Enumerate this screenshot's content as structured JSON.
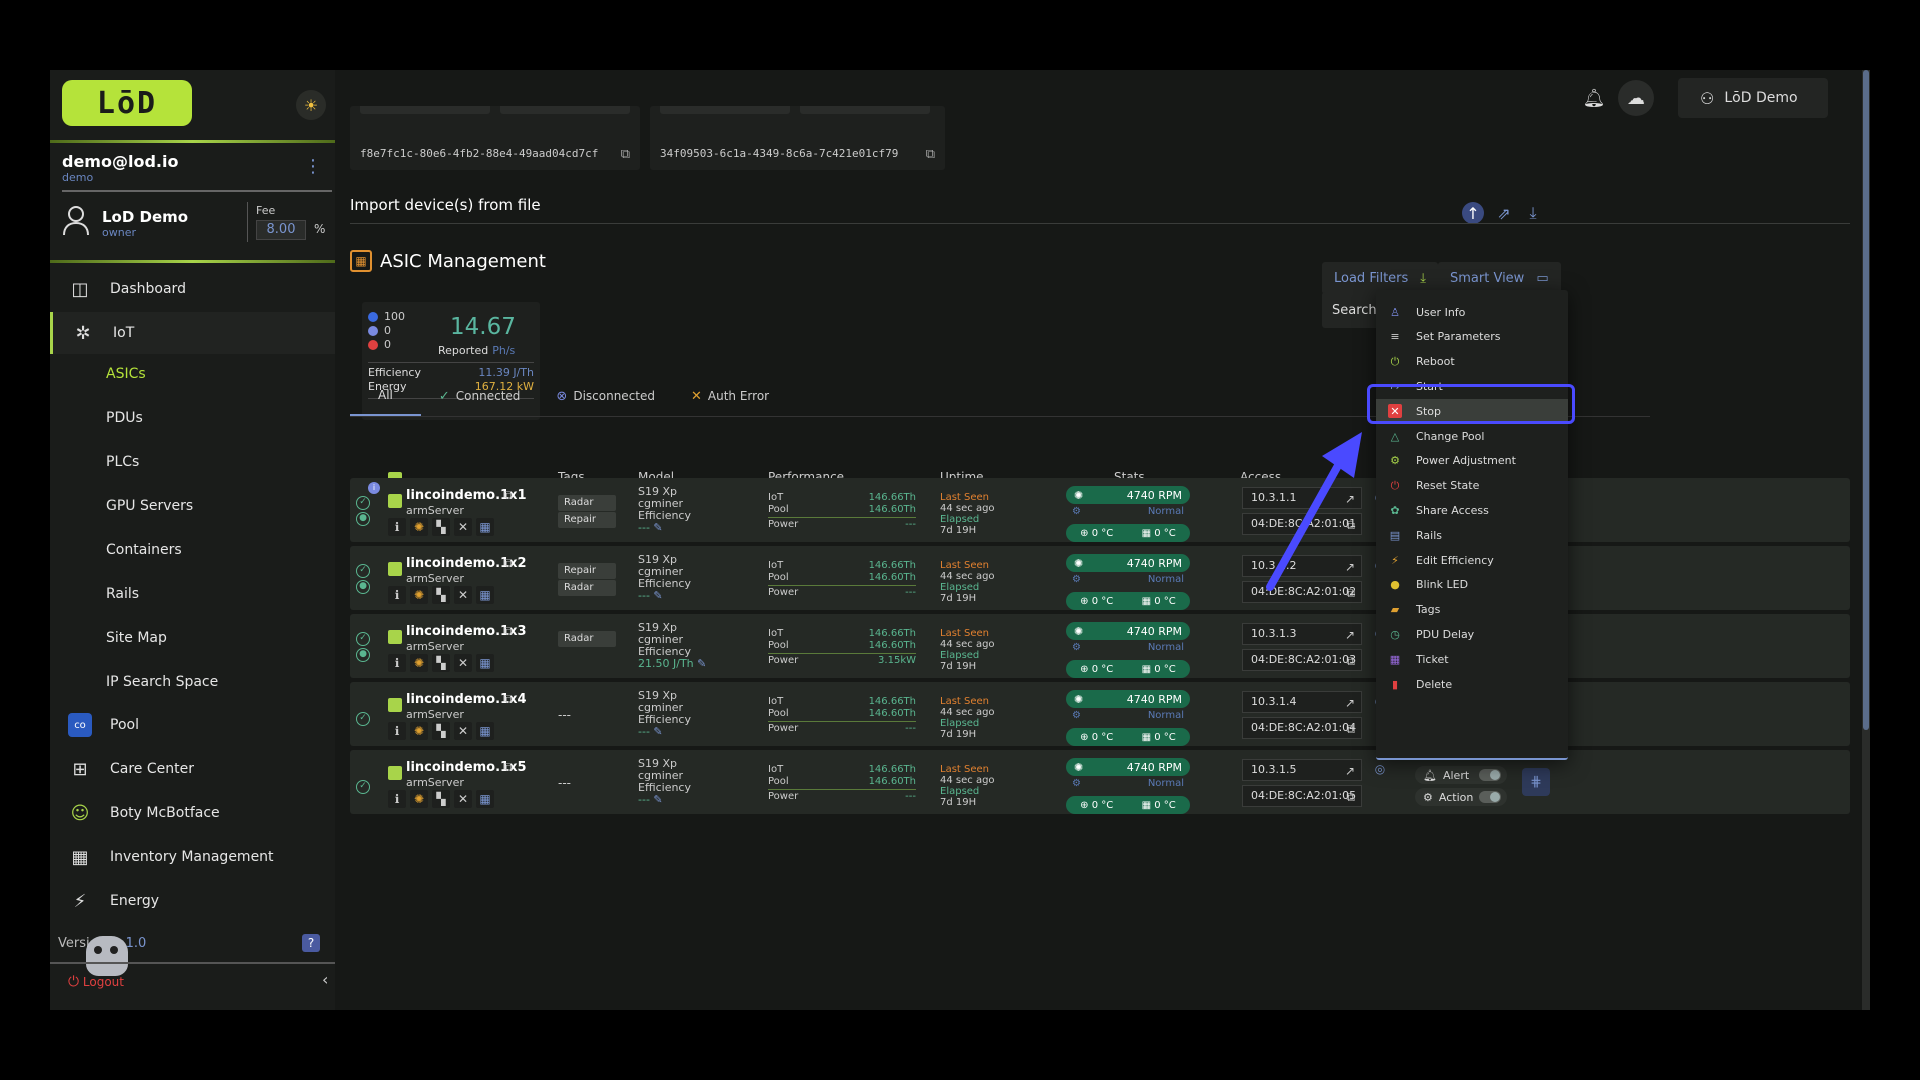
{
  "sidebar": {
    "logo": "LōD",
    "email": "demo@lod.io",
    "email_role": "demo",
    "owner_name": "LoD Demo",
    "owner_role": "owner",
    "fee_label": "Fee",
    "fee_value": "8.00",
    "fee_unit": "%",
    "nav": {
      "dashboard": "Dashboard",
      "iot": "IoT",
      "asics": "ASICs",
      "pdus": "PDUs",
      "plcs": "PLCs",
      "gpu": "GPU Servers",
      "containers": "Containers",
      "rails": "Rails",
      "sitemap": "Site Map",
      "ipsearch": "IP Search Space",
      "pool": "Pool",
      "care": "Care Center",
      "boty": "Boty McBotface",
      "inventory": "Inventory Management",
      "energy": "Energy"
    },
    "version_label": "Versi",
    "version_value": "1.0",
    "logout": "Logout"
  },
  "header": {
    "user": "LōD Demo"
  },
  "uuids": [
    "f8e7fc1c-80e6-4fb2-88e4-49aad04cd7cf",
    "34f09503-6c1a-4349-8c6a-7c421e01cf79"
  ],
  "import_title": "Import device(s) from file",
  "asic_title": "ASIC Management",
  "summary": {
    "connected": "100",
    "disconnected": "0",
    "error": "0",
    "hashrate": "14.67",
    "reported": "Reported",
    "unit": "Ph/s",
    "efficiency_label": "Efficiency",
    "efficiency_value": "11.39 J/Th",
    "energy_label": "Energy",
    "energy_value": "167.12 kW"
  },
  "load_filters": "Load Filters",
  "smart_view": "Smart View",
  "search_placeholder": "Search Device",
  "tabs": {
    "all": "All",
    "connected": "Connected",
    "disconnected": "Disconnected",
    "auth_error": "Auth Error"
  },
  "columns": {
    "tags": "Tags",
    "model": "Model",
    "performance": "Performance",
    "uptime": "Uptime",
    "stats": "Stats",
    "access": "Access"
  },
  "rows": [
    {
      "name": "lincoindemo.1x1",
      "type": "armServer",
      "tags": [
        "Radar",
        "Repair"
      ],
      "model": "S19 Xp",
      "miner": "cgminer",
      "eff": "---",
      "iot": "146.66Th",
      "pool": "146.60Th",
      "power": "---",
      "ls": "Last Seen",
      "ago": "44 sec ago",
      "elapsed": "Elapsed",
      "dur": "7d 19H",
      "rpm": "4740 RPM",
      "normal": "Normal",
      "t1": "0 °C",
      "t2": "0 °C",
      "ip": "10.3.1.1",
      "mac": "04:DE:8C:A2:01:01"
    },
    {
      "name": "lincoindemo.1x2",
      "type": "armServer",
      "tags": [
        "Repair",
        "Radar"
      ],
      "model": "S19 Xp",
      "miner": "cgminer",
      "eff": "---",
      "iot": "146.66Th",
      "pool": "146.60Th",
      "power": "---",
      "ls": "Last Seen",
      "ago": "44 sec ago",
      "elapsed": "Elapsed",
      "dur": "7d 19H",
      "rpm": "4740 RPM",
      "normal": "Normal",
      "t1": "0 °C",
      "t2": "0 °C",
      "ip": "10.3.1.2",
      "mac": "04:DE:8C:A2:01:02"
    },
    {
      "name": "lincoindemo.1x3",
      "type": "armServer",
      "tags": [
        "Radar"
      ],
      "model": "S19 Xp",
      "miner": "cgminer",
      "eff": "21.50 J/Th",
      "iot": "146.66Th",
      "pool": "146.60Th",
      "power": "3.15kW",
      "ls": "Last Seen",
      "ago": "44 sec ago",
      "elapsed": "Elapsed",
      "dur": "7d 19H",
      "rpm": "4740 RPM",
      "normal": "Normal",
      "t1": "0 °C",
      "t2": "0 °C",
      "ip": "10.3.1.3",
      "mac": "04:DE:8C:A2:01:03"
    },
    {
      "name": "lincoindemo.1x4",
      "type": "armServer",
      "tags": [],
      "tagnone": "---",
      "model": "S19 Xp",
      "miner": "cgminer",
      "eff": "---",
      "iot": "146.66Th",
      "pool": "146.60Th",
      "power": "---",
      "ls": "Last Seen",
      "ago": "44 sec ago",
      "elapsed": "Elapsed",
      "dur": "7d 19H",
      "rpm": "4740 RPM",
      "normal": "Normal",
      "t1": "0 °C",
      "t2": "0 °C",
      "ip": "10.3.1.4",
      "mac": "04:DE:8C:A2:01:04",
      "alert": "Alert",
      "action": "Action"
    },
    {
      "name": "lincoindemo.1x5",
      "type": "armServer",
      "tags": [],
      "tagnone": "---",
      "model": "S19 Xp",
      "miner": "cgminer",
      "eff": "---",
      "iot": "146.66Th",
      "pool": "146.60Th",
      "power": "---",
      "ls": "Last Seen",
      "ago": "44 sec ago",
      "elapsed": "Elapsed",
      "dur": "7d 19H",
      "rpm": "4740 RPM",
      "normal": "Normal",
      "t1": "0 °C",
      "t2": "0 °C",
      "ip": "10.3.1.5",
      "mac": "04:DE:8C:A2:01:05",
      "alert": "Alert",
      "action": "Action"
    }
  ],
  "perf_labels": {
    "iot": "IoT",
    "pool": "Pool",
    "power": "Power",
    "efficiency": "Efficiency"
  },
  "menu": [
    {
      "label": "User Info",
      "icon": "user-icon",
      "color": "#7a8ae0"
    },
    {
      "label": "Set Parameters",
      "icon": "sliders-icon",
      "color": "#ccc"
    },
    {
      "label": "Reboot",
      "icon": "power-icon",
      "color": "#a8d44a"
    },
    {
      "label": "Start",
      "icon": "start-icon",
      "color": "#7a95d0"
    },
    {
      "label": "Stop",
      "icon": "stop-icon",
      "color": "#e04040"
    },
    {
      "label": "Change Pool",
      "icon": "triangle-icon",
      "color": "#5ab690"
    },
    {
      "label": "Power Adjustment",
      "icon": "power-adjust-icon",
      "color": "#a8d44a"
    },
    {
      "label": "Reset State",
      "icon": "reset-icon",
      "color": "#e04040"
    },
    {
      "label": "Share Access",
      "icon": "share-icon",
      "color": "#5ab690"
    },
    {
      "label": "Rails",
      "icon": "rails-icon",
      "color": "#7a95d0"
    },
    {
      "label": "Edit Efficiency",
      "icon": "bolt-icon",
      "color": "#e0a030"
    },
    {
      "label": "Blink LED",
      "icon": "led-icon",
      "color": "#e0c030"
    },
    {
      "label": "Tags",
      "icon": "tag-icon",
      "color": "#e0a030"
    },
    {
      "label": "PDU Delay",
      "icon": "clock-icon",
      "color": "#5ab690"
    },
    {
      "label": "Ticket",
      "icon": "ticket-icon",
      "color": "#9a6ae0"
    },
    {
      "label": "Delete",
      "icon": "trash-icon",
      "color": "#e04040"
    }
  ]
}
